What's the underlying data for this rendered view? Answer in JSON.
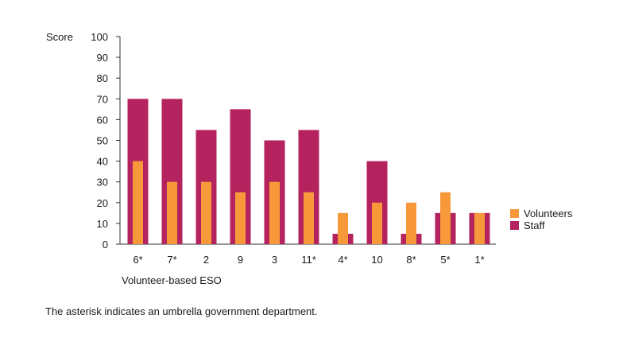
{
  "chart_data": {
    "type": "bar",
    "ylabel": "Score",
    "xlabel": "Volunteer-based ESO",
    "ylim": [
      0,
      100
    ],
    "yticks": [
      0,
      10,
      20,
      30,
      40,
      50,
      60,
      70,
      80,
      90,
      100
    ],
    "categories": [
      "6*",
      "7*",
      "2",
      "9",
      "3",
      "11*",
      "4*",
      "10",
      "8*",
      "5*",
      "1*"
    ],
    "series": [
      {
        "name": "Volunteers",
        "color": "#f7993a",
        "values": [
          40,
          30,
          30,
          25,
          30,
          25,
          15,
          20,
          20,
          25,
          15
        ]
      },
      {
        "name": "Staff",
        "color": "#b5235f",
        "values": [
          70,
          70,
          55,
          65,
          50,
          55,
          5,
          40,
          5,
          15,
          15
        ]
      }
    ],
    "legend_position": "right",
    "grid": false
  },
  "footnote": "The asterisk indicates an umbrella government department."
}
